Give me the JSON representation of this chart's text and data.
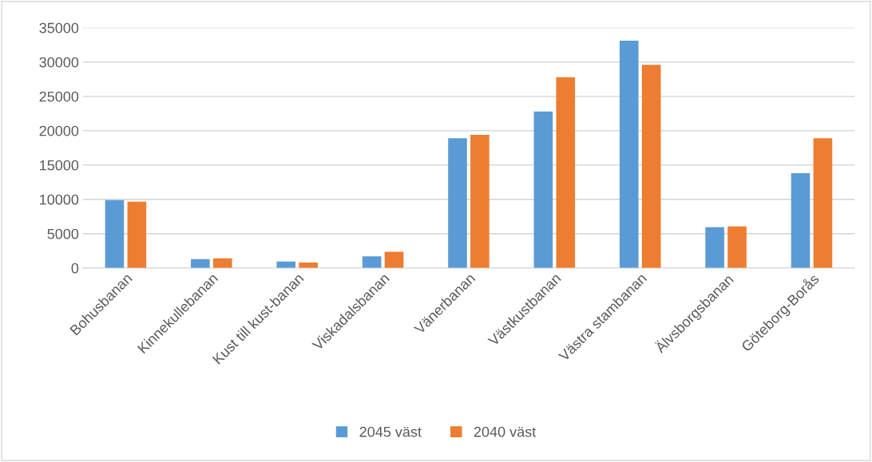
{
  "chart_data": {
    "type": "bar",
    "categories": [
      "Bohusbanan",
      "Kinnekullebanan",
      "Kust till kust-banan",
      "Viskadalsbanan",
      "Vänerbanan",
      "Västkustbanan",
      "Västra stambanan",
      "Älvsborgsbanan",
      "Göteborg-Borås"
    ],
    "series": [
      {
        "name": "2045 väst",
        "color": "#5b9bd5",
        "values": [
          9900,
          1300,
          950,
          1700,
          18900,
          22800,
          33100,
          5950,
          13800
        ]
      },
      {
        "name": "2040 väst",
        "color": "#ed7d31",
        "values": [
          9650,
          1400,
          800,
          2350,
          19400,
          27800,
          29600,
          6050,
          18900
        ]
      }
    ],
    "ylim": [
      0,
      35000
    ],
    "yticks": [
      0,
      5000,
      10000,
      15000,
      20000,
      25000,
      30000,
      35000
    ],
    "grid": "y",
    "legend": "bottom"
  }
}
